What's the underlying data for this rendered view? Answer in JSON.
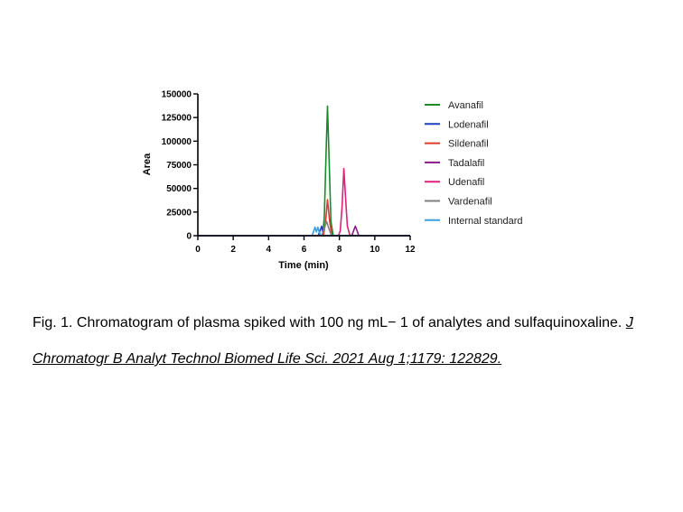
{
  "chart_data": {
    "type": "line",
    "title": "",
    "xlabel": "Time (min)",
    "ylabel": "Area",
    "xlim": [
      0,
      12
    ],
    "ylim": [
      0,
      150000
    ],
    "xticks": [
      0,
      2,
      4,
      6,
      8,
      10,
      12
    ],
    "xtick_labels": [
      "0",
      "2",
      "4",
      "6",
      "8",
      "10",
      "12"
    ],
    "yticks": [
      0,
      25000,
      50000,
      75000,
      100000,
      125000,
      150000
    ],
    "ytick_labels": [
      "0",
      "25000",
      "50000",
      "75000",
      "100000",
      "125000",
      "150000"
    ],
    "grid": false,
    "legend_position": "right",
    "series": [
      {
        "name": "Avanafil",
        "color": "#1a8a2a",
        "x": [
          0,
          7.05,
          7.15,
          7.25,
          7.33,
          7.42,
          7.52,
          7.65,
          12
        ],
        "y": [
          0,
          0,
          20000,
          90000,
          137000,
          80000,
          15000,
          0,
          0
        ]
      },
      {
        "name": "Lodenafil",
        "color": "#1f3fb8",
        "x": [
          0,
          6.8,
          6.9,
          7.0,
          7.1,
          12
        ],
        "y": [
          0,
          0,
          5000,
          10000,
          0,
          0
        ]
      },
      {
        "name": "Sildenafil",
        "color": "#e03a2a",
        "x": [
          0,
          7.1,
          7.22,
          7.33,
          7.45,
          7.58,
          12
        ],
        "y": [
          0,
          0,
          15000,
          38000,
          15000,
          0,
          0
        ]
      },
      {
        "name": "Tadalafil",
        "color": "#8a1a8a",
        "x": [
          0,
          8.7,
          8.82,
          8.9,
          8.98,
          9.1,
          12
        ],
        "y": [
          0,
          0,
          6000,
          10000,
          6000,
          0,
          0
        ]
      },
      {
        "name": "Udenafil",
        "color": "#e0207a",
        "x": [
          0,
          7.95,
          8.05,
          8.15,
          8.25,
          8.35,
          8.45,
          8.6,
          12
        ],
        "y": [
          0,
          0,
          5000,
          30000,
          71000,
          40000,
          10000,
          0,
          0
        ]
      },
      {
        "name": "Vardenafil",
        "color": "#808080",
        "x": [
          0,
          7.0,
          7.15,
          7.28,
          7.4,
          7.55,
          12
        ],
        "y": [
          0,
          0,
          8000,
          15000,
          8000,
          0,
          0
        ]
      },
      {
        "name": "Internal standard",
        "color": "#3aa0e0",
        "x": [
          0,
          6.45,
          6.55,
          6.62,
          6.7,
          6.78,
          6.86,
          6.95,
          12
        ],
        "y": [
          0,
          0,
          5000,
          9000,
          4000,
          9000,
          4000,
          0,
          0
        ]
      }
    ]
  },
  "caption": {
    "text": "Fig. 1. Chromatogram of plasma spiked with 100 ng mL− 1 of analytes and sulfaquinoxaline. ",
    "reference": "J Chromatogr B Analyt Technol Biomed Life Sci. 2021 Aug 1;1179: 122829."
  }
}
